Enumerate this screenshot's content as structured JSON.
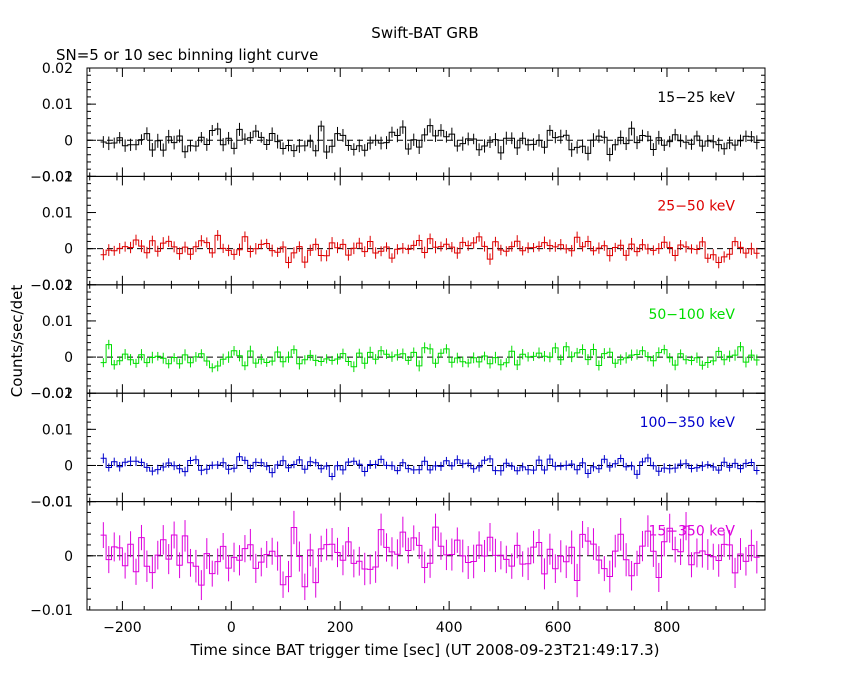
{
  "chart_data": {
    "type": "line",
    "title": "Swift-BAT GRB",
    "subtitle": "SN=5 or 10 sec binning light curve",
    "xlabel": "Time since BAT trigger time [sec] (UT 2008-09-23T21:49:17.3)",
    "ylabel": "Counts/sec/det",
    "xlim": [
      -265,
      980
    ],
    "x_ticks": [
      -200,
      0,
      200,
      400,
      600,
      800
    ],
    "x_tick_labels": [
      "−200",
      "0",
      "200",
      "400",
      "600",
      "800"
    ],
    "x_range": [
      -240,
      970
    ],
    "bin_width": 10,
    "grid": false,
    "panels": [
      {
        "name": "15−25 keV",
        "color": "#000000",
        "ylim": [
          -0.01,
          0.02
        ],
        "y_ticks": [
          -0.01,
          0,
          0.01,
          0.02
        ],
        "y_tick_labels": [
          "−0.01",
          "0",
          "0.01",
          "0.02"
        ],
        "noise": 0.0017,
        "err": 0.0017,
        "seed": 11
      },
      {
        "name": "25−50 keV",
        "color": "#dd0000",
        "ylim": [
          -0.01,
          0.02
        ],
        "y_ticks": [
          -0.01,
          0,
          0.01,
          0.02
        ],
        "y_tick_labels": [
          "−0.01",
          "0",
          "0.01",
          "0.02"
        ],
        "noise": 0.0015,
        "err": 0.0015,
        "seed": 23
      },
      {
        "name": "50−100 keV",
        "color": "#00dd00",
        "ylim": [
          -0.01,
          0.02
        ],
        "y_ticks": [
          -0.01,
          0,
          0.01,
          0.02
        ],
        "y_tick_labels": [
          "−0.01",
          "0",
          "0.01",
          "0.02"
        ],
        "noise": 0.0014,
        "err": 0.0014,
        "seed": 37
      },
      {
        "name": "100−350 keV",
        "color": "#0000cc",
        "ylim": [
          -0.01,
          0.02
        ],
        "y_ticks": [
          -0.01,
          0,
          0.01,
          0.02
        ],
        "y_tick_labels": [
          "−0.01",
          "0",
          "0.01",
          "0.02"
        ],
        "noise": 0.0012,
        "err": 0.0012,
        "seed": 41
      },
      {
        "name": "15−350 keV",
        "color": "#dd00dd",
        "ylim": [
          -0.01,
          0.01
        ],
        "y_ticks": [
          -0.01,
          0,
          0.01
        ],
        "y_tick_labels": [
          "−0.01",
          "0",
          "0.01"
        ],
        "noise": 0.0027,
        "err": 0.0027,
        "seed": 53
      }
    ]
  }
}
